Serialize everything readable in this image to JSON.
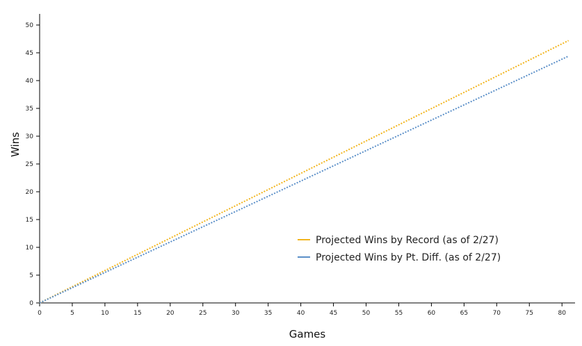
{
  "chart_data": {
    "type": "line",
    "title": "",
    "xlabel": "Games",
    "ylabel": "Wins",
    "xlim": [
      0,
      82
    ],
    "ylim": [
      0,
      52
    ],
    "xticks": [
      0,
      5,
      10,
      15,
      20,
      25,
      30,
      35,
      40,
      45,
      50,
      55,
      60,
      65,
      70,
      75,
      80
    ],
    "yticks": [
      0,
      5,
      10,
      15,
      20,
      25,
      30,
      35,
      40,
      45,
      50
    ],
    "grid": false,
    "legend_position": "bottom-right",
    "series": [
      {
        "name": "Projected Wins by Record (as of 2/27)",
        "color": "#f2b51e",
        "style": "dotted",
        "x": [
          0,
          81
        ],
        "y": [
          0,
          47.2
        ]
      },
      {
        "name": "Projected Wins by Pt. Diff. (as of 2/27)",
        "color": "#5b8fc8",
        "style": "dotted",
        "x": [
          0,
          81
        ],
        "y": [
          0,
          44.4
        ]
      }
    ]
  }
}
